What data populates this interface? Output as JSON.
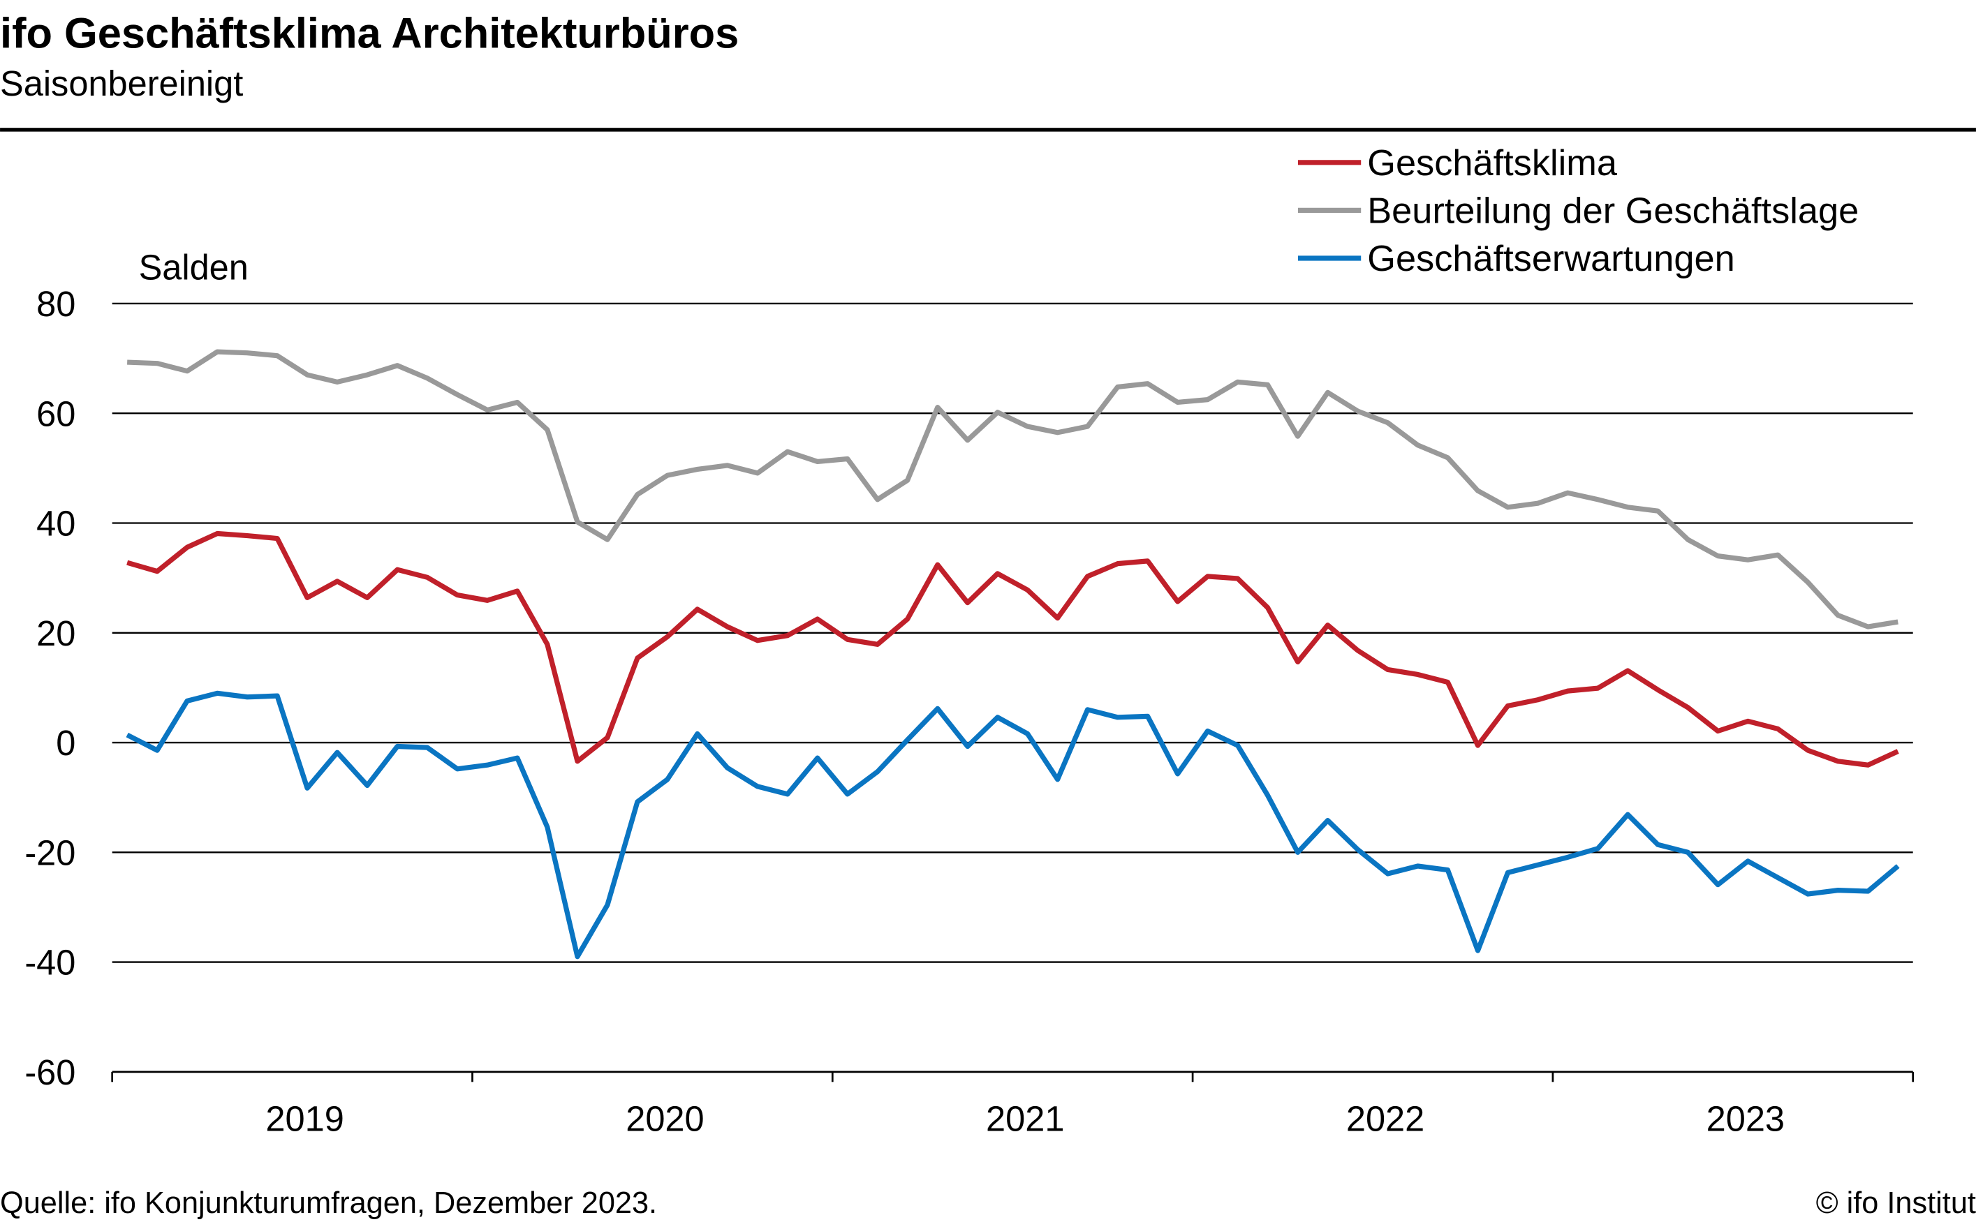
{
  "title": "ifo Geschäftsklima Architekturbüros",
  "subtitle": "Saisonbereinigt",
  "footer": {
    "source": "Quelle: ifo Konjunkturumfragen, Dezember 2023.",
    "copyright": "© ifo Institut"
  },
  "chart_data": {
    "type": "line",
    "ylabel": "Salden",
    "ylim": [
      -60,
      80
    ],
    "yticks": [
      "80",
      "60",
      "40",
      "20",
      "0",
      "-20",
      "-40",
      "-60"
    ],
    "x_period": "monthly, Jan 2019 – Dec 2023",
    "xtick_labels": [
      "2019",
      "2020",
      "2021",
      "2022",
      "2023"
    ],
    "grid": true,
    "legend_position": "top-right",
    "series": [
      {
        "name": "Geschäftsklima",
        "color": "#c0202a",
        "values": [
          32.8,
          31.2,
          35.6,
          38.1,
          37.7,
          37.2,
          26.4,
          29.4,
          26.4,
          31.5,
          30.1,
          26.9,
          25.9,
          27.6,
          17.9,
          -3.4,
          0.9,
          15.4,
          19.3,
          24.3,
          21.1,
          18.6,
          19.5,
          22.5,
          18.8,
          17.9,
          22.5,
          32.4,
          25.5,
          30.8,
          27.8,
          22.7,
          30.3,
          32.6,
          33.1,
          25.7,
          30.3,
          29.9,
          24.6,
          14.7,
          21.4,
          16.8,
          13.3,
          12.4,
          11.0,
          -0.5,
          6.7,
          7.8,
          9.4,
          9.9,
          13.1,
          9.6,
          6.4,
          2.1,
          3.9,
          2.5,
          -1.4,
          -3.4,
          -4.1,
          -1.6
        ]
      },
      {
        "name": "Beurteilung der Geschäftslage",
        "color": "#999999",
        "values": [
          69.3,
          69.1,
          67.7,
          71.2,
          71.0,
          70.5,
          67.0,
          65.7,
          67.0,
          68.7,
          66.4,
          63.4,
          60.6,
          62.0,
          57.0,
          40.2,
          37.0,
          45.2,
          48.7,
          49.8,
          50.5,
          49.1,
          53.0,
          51.2,
          51.7,
          44.3,
          47.8,
          61.1,
          55.1,
          60.2,
          57.6,
          56.5,
          57.6,
          64.8,
          65.4,
          62.0,
          62.5,
          65.7,
          65.2,
          55.8,
          63.8,
          60.4,
          58.3,
          54.2,
          51.9,
          45.9,
          42.9,
          43.6,
          45.5,
          44.3,
          42.9,
          42.2,
          37.0,
          34.0,
          33.3,
          34.2,
          29.2,
          23.2,
          21.1,
          22.0
        ]
      },
      {
        "name": "Geschäftserwartungen",
        "color": "#0a75c2",
        "values": [
          1.4,
          -1.4,
          7.6,
          9.0,
          8.3,
          8.5,
          -8.3,
          -1.8,
          -7.8,
          -0.7,
          -0.9,
          -4.8,
          -4.1,
          -2.8,
          -15.4,
          -39.0,
          -29.6,
          -10.8,
          -6.7,
          1.6,
          -4.6,
          -8.0,
          -9.4,
          -2.8,
          -9.4,
          -5.3,
          0.5,
          6.2,
          -0.7,
          4.6,
          1.6,
          -6.7,
          6.0,
          4.6,
          4.8,
          -5.7,
          2.1,
          -0.5,
          -9.6,
          -20.0,
          -14.2,
          -19.5,
          -23.9,
          -22.5,
          -23.2,
          -37.9,
          -23.7,
          -22.3,
          -20.9,
          -19.3,
          -13.1,
          -18.6,
          -20.0,
          -25.9,
          -21.6,
          -24.6,
          -27.6,
          -26.9,
          -27.1,
          -22.5
        ]
      }
    ]
  }
}
